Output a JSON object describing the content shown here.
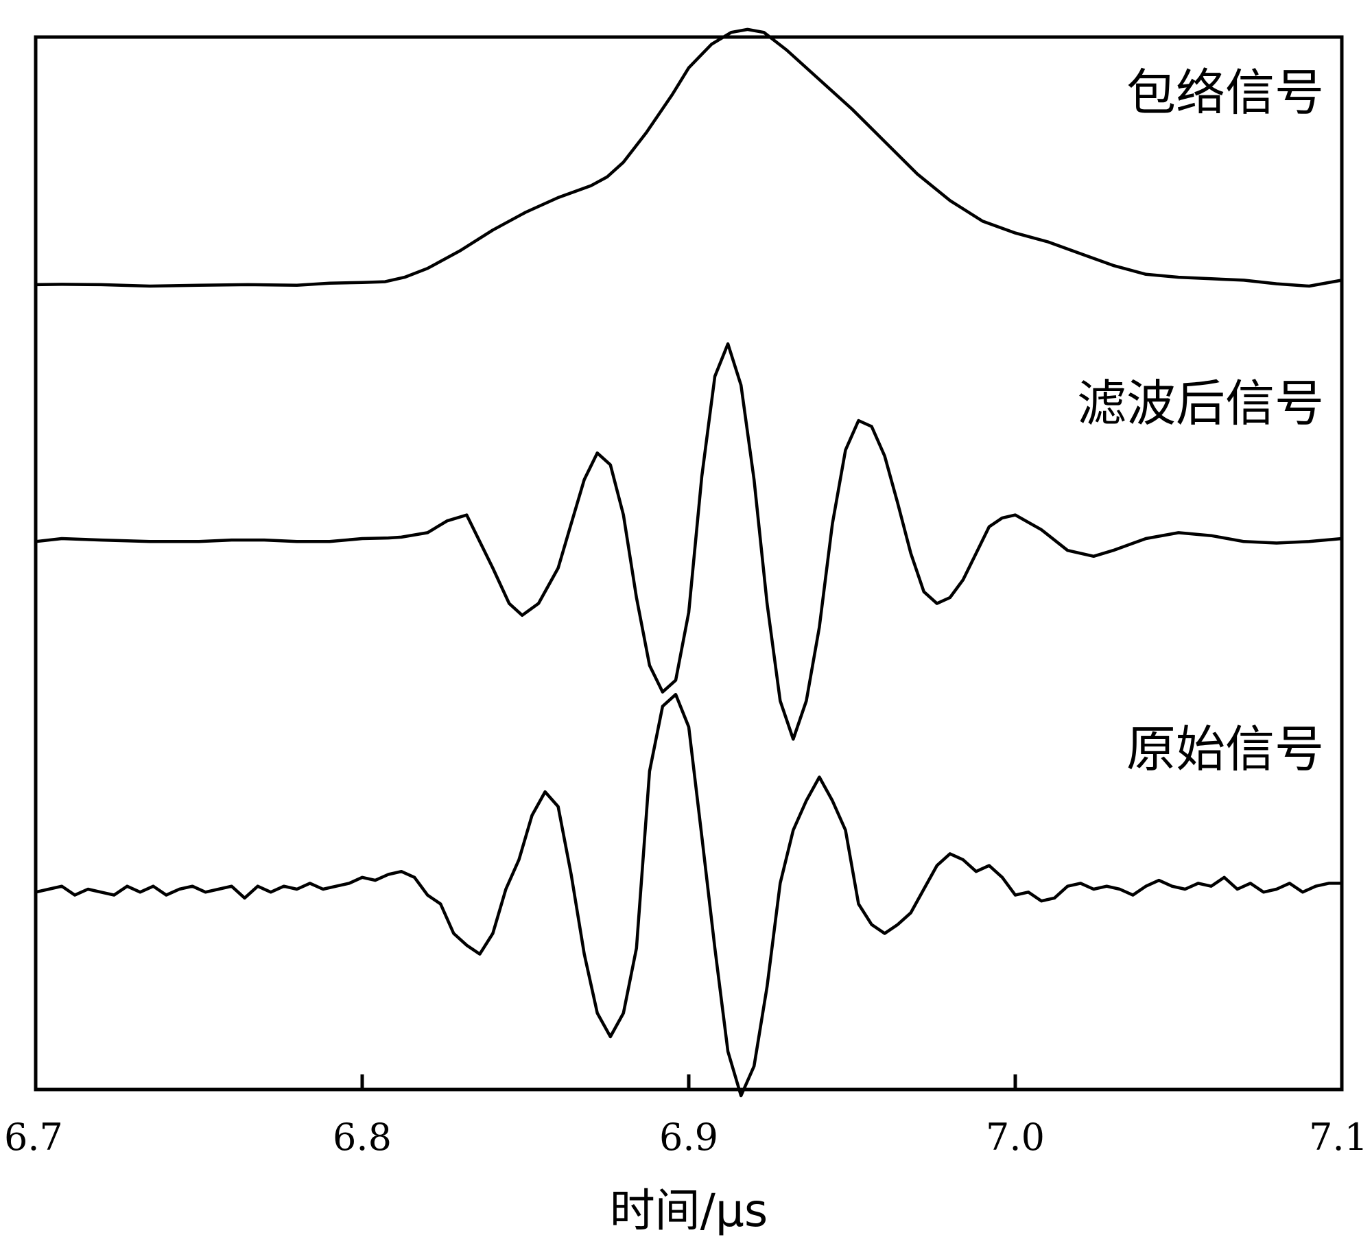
{
  "chart_data": {
    "type": "line",
    "title": "",
    "xlabel": "时间/μs",
    "ylabel": "",
    "xlim": [
      6.7,
      7.1
    ],
    "x_ticks": [
      6.7,
      6.8,
      6.9,
      7.0,
      7.1
    ],
    "x_tick_labels": [
      "6.7",
      "6.8",
      "6.9",
      "7.0",
      "7.1"
    ],
    "y_axis_shown": false,
    "grid": false,
    "legend": "none",
    "line_color": "#000000",
    "series_label_placement": "top-right of each trace",
    "series": [
      {
        "name": "包络信号",
        "x": [
          6.7,
          6.708,
          6.72,
          6.735,
          6.75,
          6.765,
          6.78,
          6.79,
          6.8,
          6.807,
          6.813,
          6.82,
          6.83,
          6.84,
          6.85,
          6.86,
          6.87,
          6.875,
          6.88,
          6.887,
          6.895,
          6.9,
          6.907,
          6.913,
          6.918,
          6.923,
          6.93,
          6.94,
          6.95,
          6.96,
          6.97,
          6.98,
          6.99,
          7.0,
          7.01,
          7.02,
          7.03,
          7.04,
          7.05,
          7.06,
          7.07,
          7.08,
          7.09,
          7.1
        ],
        "y": [
          0.005,
          0.006,
          0.005,
          0.0,
          0.003,
          0.005,
          0.003,
          0.01,
          0.012,
          0.015,
          0.03,
          0.06,
          0.12,
          0.19,
          0.25,
          0.3,
          0.34,
          0.37,
          0.42,
          0.52,
          0.65,
          0.74,
          0.82,
          0.86,
          0.87,
          0.86,
          0.8,
          0.7,
          0.6,
          0.49,
          0.38,
          0.29,
          0.22,
          0.18,
          0.15,
          0.11,
          0.07,
          0.04,
          0.03,
          0.025,
          0.02,
          0.008,
          0.0,
          0.02
        ]
      },
      {
        "name": "滤波后信号",
        "x": [
          6.7,
          6.708,
          6.72,
          6.735,
          6.75,
          6.76,
          6.77,
          6.78,
          6.79,
          6.8,
          6.808,
          6.812,
          6.82,
          6.826,
          6.832,
          6.84,
          6.845,
          6.849,
          6.854,
          6.86,
          6.864,
          6.868,
          6.872,
          6.876,
          6.88,
          6.884,
          6.888,
          6.892,
          6.896,
          6.9,
          6.904,
          6.908,
          6.912,
          6.916,
          6.92,
          6.924,
          6.928,
          6.932,
          6.936,
          6.94,
          6.944,
          6.948,
          6.952,
          6.956,
          6.96,
          6.964,
          6.968,
          6.972,
          6.976,
          6.98,
          6.984,
          6.988,
          6.992,
          6.996,
          7.0,
          7.008,
          7.016,
          7.024,
          7.03,
          7.04,
          7.05,
          7.06,
          7.07,
          7.08,
          7.09,
          7.1
        ],
        "y": [
          -0.01,
          0.0,
          -0.005,
          -0.01,
          -0.01,
          -0.005,
          -0.005,
          -0.01,
          -0.01,
          0.0,
          0.002,
          0.005,
          0.02,
          0.06,
          0.08,
          -0.1,
          -0.22,
          -0.26,
          -0.22,
          -0.1,
          0.05,
          0.2,
          0.29,
          0.25,
          0.08,
          -0.2,
          -0.43,
          -0.52,
          -0.48,
          -0.25,
          0.21,
          0.55,
          0.66,
          0.52,
          0.2,
          -0.22,
          -0.55,
          -0.68,
          -0.55,
          -0.3,
          0.05,
          0.3,
          0.4,
          0.38,
          0.28,
          0.12,
          -0.05,
          -0.18,
          -0.22,
          -0.2,
          -0.14,
          -0.05,
          0.04,
          0.07,
          0.08,
          0.03,
          -0.04,
          -0.06,
          -0.04,
          0.0,
          0.02,
          0.01,
          -0.01,
          -0.015,
          -0.01,
          0.0
        ]
      },
      {
        "name": "原始信号",
        "x": [
          6.7,
          6.704,
          6.708,
          6.712,
          6.716,
          6.72,
          6.724,
          6.728,
          6.732,
          6.736,
          6.74,
          6.744,
          6.748,
          6.752,
          6.756,
          6.76,
          6.764,
          6.768,
          6.772,
          6.776,
          6.78,
          6.784,
          6.788,
          6.792,
          6.796,
          6.8,
          6.804,
          6.808,
          6.812,
          6.816,
          6.82,
          6.824,
          6.828,
          6.832,
          6.836,
          6.84,
          6.844,
          6.848,
          6.852,
          6.856,
          6.86,
          6.864,
          6.868,
          6.872,
          6.876,
          6.88,
          6.884,
          6.888,
          6.892,
          6.896,
          6.9,
          6.904,
          6.908,
          6.912,
          6.916,
          6.92,
          6.924,
          6.928,
          6.932,
          6.936,
          6.94,
          6.944,
          6.948,
          6.952,
          6.956,
          6.96,
          6.964,
          6.968,
          6.972,
          6.976,
          6.98,
          6.984,
          6.988,
          6.992,
          6.996,
          7.0,
          7.004,
          7.008,
          7.012,
          7.016,
          7.02,
          7.024,
          7.028,
          7.032,
          7.036,
          7.04,
          7.044,
          7.048,
          7.052,
          7.056,
          7.06,
          7.064,
          7.068,
          7.072,
          7.076,
          7.08,
          7.084,
          7.088,
          7.092,
          7.096,
          7.1
        ],
        "y": [
          -0.01,
          0.0,
          0.01,
          -0.02,
          0.0,
          -0.01,
          -0.02,
          0.01,
          -0.01,
          0.01,
          -0.02,
          0.0,
          0.01,
          -0.01,
          0.0,
          0.01,
          -0.03,
          0.01,
          -0.01,
          0.01,
          0.0,
          0.02,
          0.0,
          0.01,
          0.02,
          0.04,
          0.03,
          0.05,
          0.06,
          0.04,
          -0.02,
          -0.05,
          -0.15,
          -0.19,
          -0.22,
          -0.15,
          0.0,
          0.1,
          0.25,
          0.33,
          0.28,
          0.05,
          -0.22,
          -0.42,
          -0.5,
          -0.42,
          -0.2,
          0.4,
          0.62,
          0.66,
          0.55,
          0.18,
          -0.2,
          -0.55,
          -0.7,
          -0.6,
          -0.33,
          0.02,
          0.2,
          0.3,
          0.38,
          0.3,
          0.2,
          -0.05,
          -0.12,
          -0.15,
          -0.12,
          -0.08,
          0.0,
          0.08,
          0.12,
          0.1,
          0.06,
          0.08,
          0.04,
          -0.02,
          -0.01,
          -0.04,
          -0.03,
          0.01,
          0.02,
          0.0,
          0.01,
          0.0,
          -0.02,
          0.01,
          0.03,
          0.01,
          0.0,
          0.02,
          0.01,
          0.04,
          0.0,
          0.02,
          -0.01,
          0.0,
          0.02,
          -0.01,
          0.01,
          0.02,
          0.02
        ]
      }
    ]
  }
}
